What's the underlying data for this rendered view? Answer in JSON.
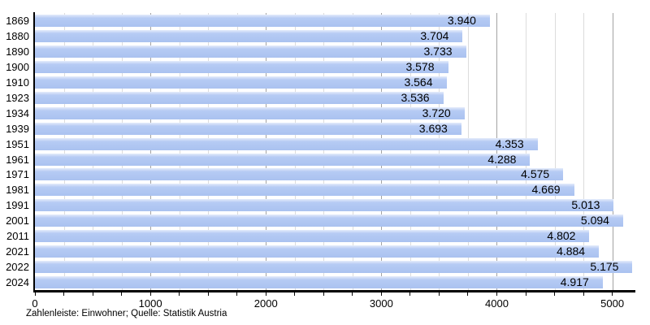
{
  "chart_data": {
    "type": "bar",
    "orientation": "horizontal",
    "title": "",
    "xlabel": "",
    "ylabel": "",
    "categories": [
      "1869",
      "1880",
      "1890",
      "1900",
      "1910",
      "1923",
      "1934",
      "1939",
      "1951",
      "1961",
      "1971",
      "1981",
      "1991",
      "2001",
      "2011",
      "2021",
      "2022",
      "2024"
    ],
    "values": [
      3940,
      3704,
      3733,
      3578,
      3564,
      3536,
      3720,
      3693,
      4353,
      4288,
      4575,
      4669,
      5013,
      5094,
      4802,
      4884,
      5175,
      4917
    ],
    "value_labels": [
      "3.940",
      "3.704",
      "3.733",
      "3.578",
      "3.564",
      "3.536",
      "3.720",
      "3.693",
      "4.353",
      "4.288",
      "4.575",
      "4.669",
      "5.013",
      "5.094",
      "4.802",
      "4.884",
      "5.175",
      "4.917"
    ],
    "xlim": [
      0,
      5200
    ],
    "x_tick_labels": [
      "0",
      "1000",
      "2000",
      "3000",
      "4000",
      "5000"
    ],
    "x_major_tick_step": 1000,
    "x_minor_tick_step": 250,
    "grid": "vertical, minor every 250, major every 1000",
    "legend": "none",
    "source_note": "Zahlenleiste: Einwohner; Quelle: Statistik Austria"
  },
  "footer": {
    "text": "Zahlenleiste: Einwohner; Quelle: Statistik Austria"
  },
  "colors": {
    "background": "#ffffff",
    "bar_fill": "#b6cbf4",
    "bar_fill_top": "#e4ecfb",
    "bar_fill_deep": "#aac2f0",
    "grid_minor": "#dcdcdc",
    "grid_major": "#a3a3a3",
    "axis": "#000000",
    "text": "#000000"
  }
}
